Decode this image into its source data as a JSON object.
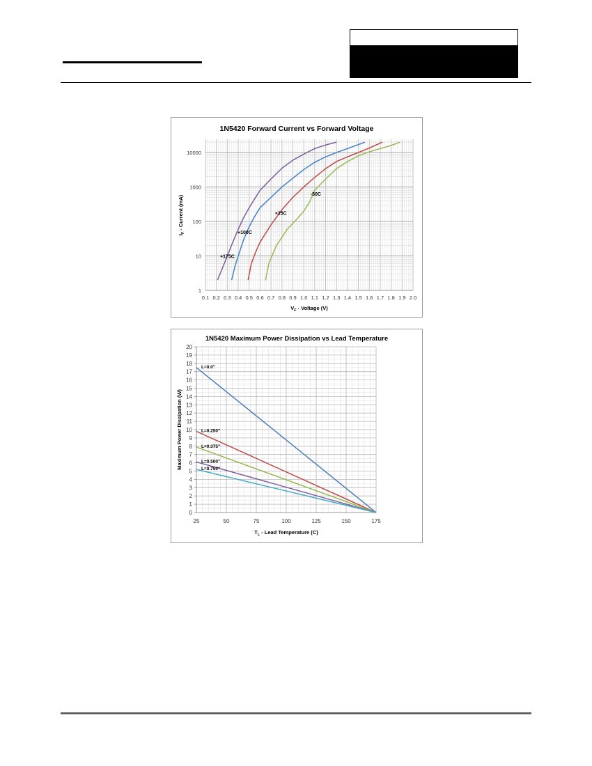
{
  "page": {
    "header": {
      "box_text": ""
    },
    "footer": {}
  },
  "chart_data": [
    {
      "type": "line",
      "title": "1N5420 Forward Current vs Forward Voltage",
      "xlabel": "V_F - Voltage (V)",
      "ylabel": "I_F - Current (mA)",
      "xscale": "linear",
      "yscale": "log",
      "xlim": [
        0.1,
        2.0
      ],
      "ylim": [
        1,
        20000
      ],
      "grid": true,
      "legend": "inline-labels",
      "x_ticks": [
        "0.1",
        "0.2",
        "0.3",
        "0.4",
        "0.5",
        "0.6",
        "0.7",
        "0.8",
        "0.9",
        "1.0",
        "1.1",
        "1.2",
        "1.3",
        "1.4",
        "1.5",
        "1.6",
        "1.7",
        "1.8",
        "1.9",
        "2.0"
      ],
      "y_ticks": [
        "1",
        "10",
        "100",
        "1000",
        "10000"
      ],
      "series": [
        {
          "name": "+175C",
          "color": "#8064a2",
          "label_pos": [
            0.3,
            10
          ],
          "points": [
            [
              0.21,
              2
            ],
            [
              0.25,
              4
            ],
            [
              0.3,
              10
            ],
            [
              0.35,
              25
            ],
            [
              0.4,
              60
            ],
            [
              0.45,
              130
            ],
            [
              0.5,
              250
            ],
            [
              0.55,
              450
            ],
            [
              0.6,
              800
            ],
            [
              0.7,
              1700
            ],
            [
              0.8,
              3500
            ],
            [
              0.9,
              6000
            ],
            [
              1.0,
              9000
            ],
            [
              1.1,
              13000
            ],
            [
              1.2,
              16500
            ],
            [
              1.3,
              20000
            ]
          ]
        },
        {
          "name": "+100C",
          "color": "#4a86c8",
          "label_pos": [
            0.46,
            50
          ],
          "points": [
            [
              0.34,
              2
            ],
            [
              0.37,
              5
            ],
            [
              0.4,
              10
            ],
            [
              0.45,
              30
            ],
            [
              0.5,
              70
            ],
            [
              0.55,
              140
            ],
            [
              0.6,
              250
            ],
            [
              0.7,
              500
            ],
            [
              0.8,
              1000
            ],
            [
              0.9,
              1800
            ],
            [
              1.0,
              3200
            ],
            [
              1.1,
              5200
            ],
            [
              1.2,
              7500
            ],
            [
              1.3,
              10000
            ],
            [
              1.4,
              13000
            ],
            [
              1.5,
              17000
            ],
            [
              1.56,
              20000
            ]
          ]
        },
        {
          "name": "+25C",
          "color": "#c0504d",
          "label_pos": [
            0.79,
            180
          ],
          "points": [
            [
              0.49,
              2
            ],
            [
              0.52,
              6
            ],
            [
              0.56,
              13
            ],
            [
              0.6,
              25
            ],
            [
              0.65,
              45
            ],
            [
              0.7,
              80
            ],
            [
              0.8,
              220
            ],
            [
              0.9,
              500
            ],
            [
              1.0,
              1000
            ],
            [
              1.1,
              1900
            ],
            [
              1.2,
              3400
            ],
            [
              1.3,
              5500
            ],
            [
              1.4,
              7500
            ],
            [
              1.5,
              10000
            ],
            [
              1.6,
              13500
            ],
            [
              1.72,
              20000
            ]
          ]
        },
        {
          "name": "-50C",
          "color": "#9bbb59",
          "label_pos": [
            1.11,
            650
          ],
          "points": [
            [
              0.65,
              2
            ],
            [
              0.68,
              6
            ],
            [
              0.72,
              12
            ],
            [
              0.75,
              20
            ],
            [
              0.8,
              35
            ],
            [
              0.85,
              60
            ],
            [
              0.95,
              130
            ],
            [
              1.0,
              200
            ],
            [
              1.05,
              350
            ],
            [
              1.1,
              800
            ],
            [
              1.2,
              1700
            ],
            [
              1.3,
              3400
            ],
            [
              1.4,
              5500
            ],
            [
              1.5,
              8000
            ],
            [
              1.6,
              10500
            ],
            [
              1.7,
              13000
            ],
            [
              1.8,
              16000
            ],
            [
              1.88,
              20000
            ]
          ]
        }
      ]
    },
    {
      "type": "line",
      "title": "1N5420 Maximum Power Dissipation vs Lead Temperature",
      "xlabel": "T_L - Lead Temperature (C)",
      "ylabel": "Maximum Power Dissipation (W)",
      "xlim": [
        25,
        175
      ],
      "ylim": [
        0,
        20
      ],
      "grid": true,
      "legend": "inline-labels",
      "x_ticks": [
        "25",
        "50",
        "75",
        "100",
        "125",
        "150",
        "175"
      ],
      "y_ticks": [
        "0",
        "1",
        "2",
        "3",
        "4",
        "5",
        "6",
        "7",
        "8",
        "9",
        "10",
        "11",
        "12",
        "13",
        "14",
        "15",
        "16",
        "17",
        "18",
        "19",
        "20"
      ],
      "series": [
        {
          "name": "L=0.0\"",
          "color": "#4a7ebb",
          "points": [
            [
              25,
              17.5
            ],
            [
              175,
              0
            ]
          ]
        },
        {
          "name": "L=0.250\"",
          "color": "#be4b48",
          "points": [
            [
              25,
              9.8
            ],
            [
              175,
              0
            ]
          ]
        },
        {
          "name": "L=0.375\"",
          "color": "#98b954",
          "points": [
            [
              25,
              7.9
            ],
            [
              175,
              0
            ]
          ]
        },
        {
          "name": "L=0.500\"",
          "color": "#7d60a0",
          "points": [
            [
              25,
              6.1
            ],
            [
              175,
              0
            ]
          ]
        },
        {
          "name": "L=0.750\"",
          "color": "#46aac5",
          "points": [
            [
              25,
              5.2
            ],
            [
              175,
              0
            ]
          ]
        }
      ]
    }
  ]
}
